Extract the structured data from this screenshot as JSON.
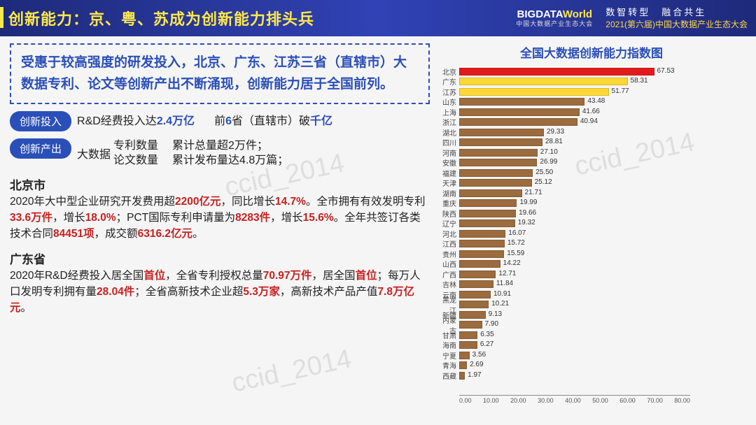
{
  "header": {
    "title": "创新能力：京、粤、苏成为创新能力排头兵",
    "logo_main": "BIGDATA",
    "logo_world": "World",
    "logo_sub": "中国大数据产业生态大会",
    "slogan_a": "数智转型　融合共生",
    "slogan_b": "2021(第六届)中国大数据产业生态大会"
  },
  "summary": "受惠于较高强度的研发投入，北京、广东、江苏三省（直辖市）大数据专利、论文等创新产出不断涌现，创新能力居于全国前列。",
  "invest": {
    "tag": "创新投入",
    "t1a": "R&D经费投入达",
    "t1b": "2.4万亿",
    "t2a": "前",
    "t2b": "6",
    "t2c": "省（直辖市）破",
    "t2d": "千亿"
  },
  "output": {
    "tag": "创新产出",
    "lead": "大数据",
    "r1": "专利数量",
    "v1": "累计总量超2万件；",
    "r2": "论文数量",
    "v2": "累计发布量达4.8万篇；"
  },
  "beijing": {
    "title": "北京市",
    "l1a": "2020年大中型企业研究开发费用超",
    "l1b": "2200亿元",
    "l1c": "，同比增长",
    "l1d": "14.7%",
    "l1e": "。全市拥有有效发明专利",
    "l1f": "33.6万件",
    "l1g": "，增长",
    "l1h": "18.0%",
    "l1i": "；PCT国际专利申请量为",
    "l1j": "8283件",
    "l1k": "，增长",
    "l1l": "15.6%",
    "l1m": "。全年共签订各类技术合同",
    "l1n": "84451项",
    "l1o": "，成交额",
    "l1p": "6316.2亿元",
    "l1q": "。"
  },
  "guangdong": {
    "title": "广东省",
    "l1a": "2020年R&D经费投入居全国",
    "l1b": "首位",
    "l1c": "，全省专利授权总量",
    "l1d": "70.97万件",
    "l1e": "，居全国",
    "l1f": "首位",
    "l1g": "；每万人口发明专利拥有量",
    "l1h": "28.04件",
    "l1i": "；全省高新技术企业超",
    "l1j": "5.3万家",
    "l1k": "，高新技术产品产值",
    "l1l": "7.8万亿元",
    "l1m": "。"
  },
  "chart": {
    "title": "全国大数据创新能力指数图",
    "xmax": 80,
    "xticks": [
      "0.00",
      "10.00",
      "20.00",
      "30.00",
      "40.00",
      "50.00",
      "60.00",
      "70.00",
      "80.00"
    ],
    "label_fontsize": 10,
    "background_color": "#ffffff",
    "axis_color": "#888888",
    "value_label_color": "#333333",
    "bars": [
      {
        "name": "北京",
        "value": 67.53,
        "color": "#e31a1c"
      },
      {
        "name": "广东",
        "value": 58.31,
        "color": "#fdd835"
      },
      {
        "name": "江苏",
        "value": 51.77,
        "color": "#fdd835"
      },
      {
        "name": "山东",
        "value": 43.48,
        "color": "#9c6b3e"
      },
      {
        "name": "上海",
        "value": 41.66,
        "color": "#9c6b3e"
      },
      {
        "name": "浙江",
        "value": 40.94,
        "color": "#9c6b3e"
      },
      {
        "name": "湖北",
        "value": 29.33,
        "color": "#9c6b3e"
      },
      {
        "name": "四川",
        "value": 28.81,
        "color": "#9c6b3e"
      },
      {
        "name": "河南",
        "value": 27.1,
        "color": "#9c6b3e"
      },
      {
        "name": "安徽",
        "value": 26.99,
        "color": "#9c6b3e"
      },
      {
        "name": "福建",
        "value": 25.5,
        "color": "#9c6b3e"
      },
      {
        "name": "天津",
        "value": 25.12,
        "color": "#9c6b3e"
      },
      {
        "name": "湖南",
        "value": 21.71,
        "color": "#9c6b3e"
      },
      {
        "name": "重庆",
        "value": 19.99,
        "color": "#9c6b3e"
      },
      {
        "name": "陕西",
        "value": 19.66,
        "color": "#9c6b3e"
      },
      {
        "name": "辽宁",
        "value": 19.32,
        "color": "#9c6b3e"
      },
      {
        "name": "河北",
        "value": 16.07,
        "color": "#9c6b3e"
      },
      {
        "name": "江西",
        "value": 15.72,
        "color": "#9c6b3e"
      },
      {
        "name": "贵州",
        "value": 15.59,
        "color": "#9c6b3e"
      },
      {
        "name": "山西",
        "value": 14.22,
        "color": "#9c6b3e"
      },
      {
        "name": "广西",
        "value": 12.71,
        "color": "#9c6b3e"
      },
      {
        "name": "吉林",
        "value": 11.84,
        "color": "#9c6b3e"
      },
      {
        "name": "云南",
        "value": 10.91,
        "color": "#9c6b3e"
      },
      {
        "name": "黑龙江",
        "value": 10.21,
        "color": "#9c6b3e"
      },
      {
        "name": "新疆",
        "value": 9.13,
        "color": "#9c6b3e"
      },
      {
        "name": "内蒙古",
        "value": 7.9,
        "color": "#9c6b3e"
      },
      {
        "name": "甘肃",
        "value": 6.35,
        "color": "#9c6b3e"
      },
      {
        "name": "海南",
        "value": 6.27,
        "color": "#9c6b3e"
      },
      {
        "name": "宁夏",
        "value": 3.56,
        "color": "#9c6b3e"
      },
      {
        "name": "青海",
        "value": 2.69,
        "color": "#9c6b3e"
      },
      {
        "name": "西藏",
        "value": 1.97,
        "color": "#9c6b3e"
      }
    ]
  },
  "watermark": "ccid_2014"
}
